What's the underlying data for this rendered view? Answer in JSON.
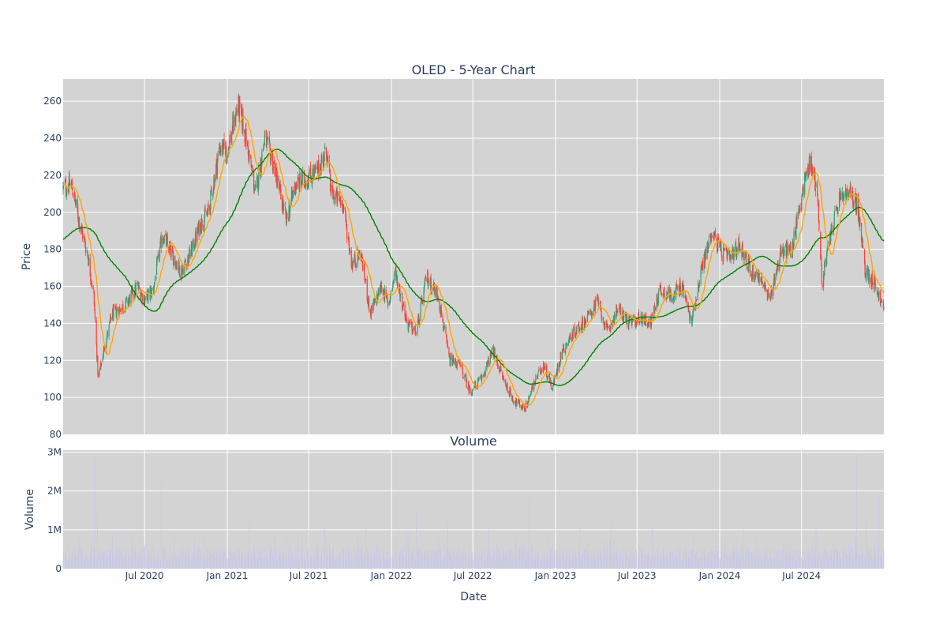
{
  "chart_data": [
    {
      "type": "candlestick",
      "title": "OLED - 5-Year Chart",
      "xlabel": "",
      "ylabel": "Price",
      "ylim": [
        80,
        272
      ],
      "xlim": [
        "2020-01-02",
        "2024-12-31"
      ],
      "y_ticks": [
        80,
        100,
        120,
        140,
        160,
        180,
        200,
        220,
        240,
        260
      ],
      "x_tick_dates": [
        "2020-07-01",
        "2021-01-01",
        "2021-07-01",
        "2022-01-01",
        "2022-07-01",
        "2023-01-01",
        "2023-07-01",
        "2024-01-01",
        "2024-07-01"
      ],
      "grid": true,
      "colors": {
        "plot_bg": "#d3d3d3",
        "grid": "#ffffff",
        "up": "#3d9970",
        "down": "#ff4136",
        "ma_short": "#ffa500",
        "ma_long": "#008000"
      },
      "close_anchors": [
        {
          "x": "2020-01-02",
          "y": 213
        },
        {
          "x": "2020-01-20",
          "y": 215
        },
        {
          "x": "2020-02-10",
          "y": 192
        },
        {
          "x": "2020-02-25",
          "y": 178
        },
        {
          "x": "2020-03-10",
          "y": 155
        },
        {
          "x": "2020-03-20",
          "y": 110
        },
        {
          "x": "2020-04-01",
          "y": 125
        },
        {
          "x": "2020-04-20",
          "y": 145
        },
        {
          "x": "2020-05-20",
          "y": 150
        },
        {
          "x": "2020-06-15",
          "y": 160
        },
        {
          "x": "2020-07-01",
          "y": 153
        },
        {
          "x": "2020-07-20",
          "y": 158
        },
        {
          "x": "2020-08-10",
          "y": 188
        },
        {
          "x": "2020-08-25",
          "y": 180
        },
        {
          "x": "2020-09-20",
          "y": 168
        },
        {
          "x": "2020-10-15",
          "y": 180
        },
        {
          "x": "2020-11-01",
          "y": 193
        },
        {
          "x": "2020-11-20",
          "y": 200
        },
        {
          "x": "2020-12-15",
          "y": 235
        },
        {
          "x": "2021-01-01",
          "y": 233
        },
        {
          "x": "2021-01-25",
          "y": 258
        },
        {
          "x": "2021-02-10",
          "y": 242
        },
        {
          "x": "2021-03-05",
          "y": 210
        },
        {
          "x": "2021-03-25",
          "y": 240
        },
        {
          "x": "2021-04-15",
          "y": 225
        },
        {
          "x": "2021-05-12",
          "y": 195
        },
        {
          "x": "2021-06-01",
          "y": 215
        },
        {
          "x": "2021-06-25",
          "y": 218
        },
        {
          "x": "2021-07-20",
          "y": 222
        },
        {
          "x": "2021-08-10",
          "y": 233
        },
        {
          "x": "2021-08-20",
          "y": 210
        },
        {
          "x": "2021-09-15",
          "y": 205
        },
        {
          "x": "2021-10-05",
          "y": 172
        },
        {
          "x": "2021-10-25",
          "y": 178
        },
        {
          "x": "2021-11-15",
          "y": 145
        },
        {
          "x": "2021-12-10",
          "y": 160
        },
        {
          "x": "2021-12-25",
          "y": 150
        },
        {
          "x": "2022-01-10",
          "y": 168
        },
        {
          "x": "2022-02-05",
          "y": 140
        },
        {
          "x": "2022-02-25",
          "y": 135
        },
        {
          "x": "2022-03-20",
          "y": 165
        },
        {
          "x": "2022-04-15",
          "y": 155
        },
        {
          "x": "2022-05-10",
          "y": 120
        },
        {
          "x": "2022-06-01",
          "y": 118
        },
        {
          "x": "2022-06-25",
          "y": 103
        },
        {
          "x": "2022-07-20",
          "y": 110
        },
        {
          "x": "2022-08-15",
          "y": 125
        },
        {
          "x": "2022-09-10",
          "y": 108
        },
        {
          "x": "2022-10-01",
          "y": 98
        },
        {
          "x": "2022-10-25",
          "y": 94
        },
        {
          "x": "2022-11-15",
          "y": 108
        },
        {
          "x": "2022-12-05",
          "y": 118
        },
        {
          "x": "2022-12-25",
          "y": 105
        },
        {
          "x": "2023-01-15",
          "y": 125
        },
        {
          "x": "2023-02-10",
          "y": 135
        },
        {
          "x": "2023-03-10",
          "y": 142
        },
        {
          "x": "2023-04-05",
          "y": 152
        },
        {
          "x": "2023-04-25",
          "y": 135
        },
        {
          "x": "2023-05-20",
          "y": 148
        },
        {
          "x": "2023-06-15",
          "y": 140
        },
        {
          "x": "2023-07-10",
          "y": 143
        },
        {
          "x": "2023-08-01",
          "y": 140
        },
        {
          "x": "2023-08-20",
          "y": 158
        },
        {
          "x": "2023-09-15",
          "y": 155
        },
        {
          "x": "2023-10-10",
          "y": 160
        },
        {
          "x": "2023-10-30",
          "y": 140
        },
        {
          "x": "2023-11-20",
          "y": 168
        },
        {
          "x": "2023-12-15",
          "y": 190
        },
        {
          "x": "2024-01-05",
          "y": 178
        },
        {
          "x": "2024-01-25",
          "y": 175
        },
        {
          "x": "2024-02-15",
          "y": 183
        },
        {
          "x": "2024-03-10",
          "y": 168
        },
        {
          "x": "2024-04-01",
          "y": 165
        },
        {
          "x": "2024-04-20",
          "y": 152
        },
        {
          "x": "2024-05-15",
          "y": 178
        },
        {
          "x": "2024-06-10",
          "y": 180
        },
        {
          "x": "2024-07-01",
          "y": 210
        },
        {
          "x": "2024-07-20",
          "y": 228
        },
        {
          "x": "2024-08-05",
          "y": 212
        },
        {
          "x": "2024-08-15",
          "y": 162
        },
        {
          "x": "2024-09-05",
          "y": 190
        },
        {
          "x": "2024-09-25",
          "y": 208
        },
        {
          "x": "2024-10-15",
          "y": 210
        },
        {
          "x": "2024-11-01",
          "y": 205
        },
        {
          "x": "2024-11-20",
          "y": 168
        },
        {
          "x": "2024-12-10",
          "y": 162
        },
        {
          "x": "2024-12-31",
          "y": 147
        }
      ],
      "series": [
        {
          "kind": "ohlc",
          "color_up": "#3d9970",
          "color_down": "#ff4136"
        },
        {
          "kind": "moving-average-short",
          "color": "#ffa500"
        },
        {
          "kind": "moving-average-long",
          "color": "#008000"
        }
      ]
    },
    {
      "type": "bar",
      "title": "Volume",
      "xlabel": "Date",
      "ylabel": "Volume",
      "ylim": [
        0,
        3050000
      ],
      "y_ticks": [
        {
          "value": 0,
          "label": "0"
        },
        {
          "value": 1000000,
          "label": "1M"
        },
        {
          "value": 2000000,
          "label": "2M"
        },
        {
          "value": 3000000,
          "label": "3M"
        }
      ],
      "grid": true,
      "colors": {
        "plot_bg": "#d3d3d3",
        "grid": "#ffffff",
        "bars": "#c8c8e8"
      },
      "spikes": [
        {
          "x": "2020-03-12",
          "value": 2950000
        },
        {
          "x": "2020-03-18",
          "value": 1500000
        },
        {
          "x": "2020-08-07",
          "value": 2200000
        },
        {
          "x": "2021-02-19",
          "value": 1200000
        },
        {
          "x": "2021-08-06",
          "value": 1050000
        },
        {
          "x": "2021-11-05",
          "value": 1100000
        },
        {
          "x": "2022-02-25",
          "value": 1400000
        },
        {
          "x": "2022-05-06",
          "value": 1150000
        },
        {
          "x": "2022-08-05",
          "value": 1050000
        },
        {
          "x": "2022-11-04",
          "value": 1850000
        },
        {
          "x": "2023-02-24",
          "value": 1100000
        },
        {
          "x": "2023-05-05",
          "value": 1200000
        },
        {
          "x": "2023-08-04",
          "value": 1050000
        },
        {
          "x": "2023-11-03",
          "value": 950000
        },
        {
          "x": "2024-02-23",
          "value": 1000000
        },
        {
          "x": "2024-08-02",
          "value": 1100000
        },
        {
          "x": "2024-10-31",
          "value": 2950000
        },
        {
          "x": "2024-11-22",
          "value": 1250000
        },
        {
          "x": "2024-12-20",
          "value": 1850000
        }
      ]
    }
  ],
  "x_tick_labels": [
    "Jul 2020",
    "Jan 2021",
    "Jul 2021",
    "Jan 2022",
    "Jul 2022",
    "Jan 2023",
    "Jul 2023",
    "Jan 2024",
    "Jul 2024"
  ]
}
